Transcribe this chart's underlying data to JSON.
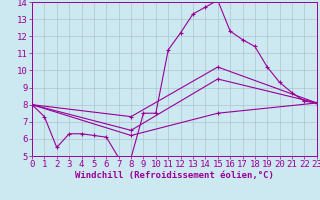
{
  "xlabel": "Windchill (Refroidissement éolien,°C)",
  "xlim": [
    0,
    23
  ],
  "ylim": [
    5,
    14
  ],
  "xticks": [
    0,
    1,
    2,
    3,
    4,
    5,
    6,
    7,
    8,
    9,
    10,
    11,
    12,
    13,
    14,
    15,
    16,
    17,
    18,
    19,
    20,
    21,
    22,
    23
  ],
  "yticks": [
    5,
    6,
    7,
    8,
    9,
    10,
    11,
    12,
    13,
    14
  ],
  "bg_color": "#cce8f0",
  "line_color": "#990099",
  "grid_color": "#aabbcc",
  "line1_x": [
    0,
    1,
    2,
    3,
    4,
    5,
    6,
    7,
    8,
    9,
    10,
    11,
    12,
    13,
    14,
    15,
    16,
    17,
    18,
    19,
    20,
    21,
    22,
    23
  ],
  "line1_y": [
    8.0,
    7.3,
    5.5,
    6.3,
    6.3,
    6.2,
    6.1,
    4.9,
    4.9,
    7.5,
    7.5,
    11.2,
    12.2,
    13.3,
    13.7,
    14.1,
    12.3,
    11.8,
    11.4,
    10.2,
    9.3,
    8.7,
    8.2,
    8.1
  ],
  "line2_x": [
    0,
    8,
    15,
    23
  ],
  "line2_y": [
    8.0,
    7.3,
    10.2,
    8.1
  ],
  "line3_x": [
    0,
    8,
    15,
    23
  ],
  "line3_y": [
    8.0,
    6.5,
    9.5,
    8.1
  ],
  "line4_x": [
    0,
    8,
    15,
    23
  ],
  "line4_y": [
    8.0,
    6.2,
    7.5,
    8.1
  ],
  "lw": 0.8,
  "marker_size": 3.0,
  "tick_fontsize": 6.5,
  "xlabel_fontsize": 6.5
}
